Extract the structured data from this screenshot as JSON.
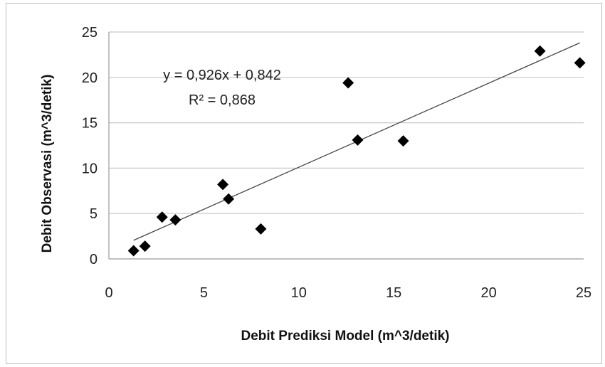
{
  "chart_data": {
    "type": "scatter",
    "xlabel": "Debit Prediksi Model (m^3/detik)",
    "ylabel": "Debit Observasi (m^3/detik)",
    "xlim": [
      0,
      25
    ],
    "ylim": [
      0,
      25
    ],
    "x_ticks": [
      "0",
      "5",
      "10",
      "15",
      "20",
      "25"
    ],
    "y_ticks": [
      "0",
      "5",
      "10",
      "15",
      "20",
      "25"
    ],
    "grid": "horizontal",
    "marker": "diamond",
    "marker_color": "#000000",
    "series": [
      {
        "points": [
          {
            "x": 1.3,
            "y": 0.9
          },
          {
            "x": 1.9,
            "y": 1.4
          },
          {
            "x": 2.8,
            "y": 4.6
          },
          {
            "x": 3.5,
            "y": 4.3
          },
          {
            "x": 6.0,
            "y": 8.2
          },
          {
            "x": 6.3,
            "y": 6.6
          },
          {
            "x": 8.0,
            "y": 3.3
          },
          {
            "x": 12.6,
            "y": 19.4
          },
          {
            "x": 13.1,
            "y": 13.1
          },
          {
            "x": 15.5,
            "y": 13.0
          },
          {
            "x": 22.7,
            "y": 22.9
          },
          {
            "x": 24.8,
            "y": 21.6
          }
        ]
      }
    ],
    "trendline": {
      "slope": 0.926,
      "intercept": 0.842,
      "x_range": [
        1.3,
        24.8
      ],
      "equation_label": "y = 0,926x + 0,842",
      "r2_label": "R² = 0,868"
    }
  }
}
